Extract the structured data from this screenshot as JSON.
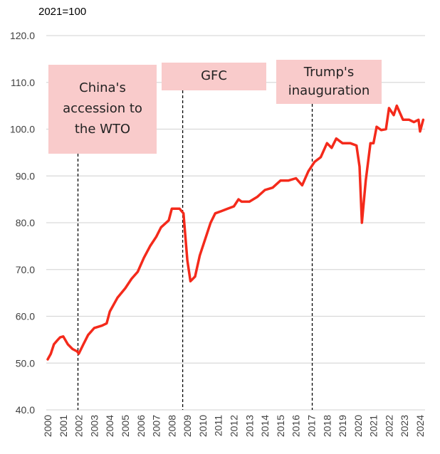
{
  "chart_data": {
    "type": "line",
    "unit_label": "2021=100",
    "ylim": [
      40,
      120
    ],
    "yticks": [
      "40.0",
      "50.0",
      "60.0",
      "70.0",
      "80.0",
      "90.0",
      "100.0",
      "110.0",
      "120.0"
    ],
    "xlim": [
      2000,
      2024
    ],
    "xticks": [
      "2000",
      "2001",
      "2002",
      "2003",
      "2004",
      "2005",
      "2006",
      "2007",
      "2008",
      "2009",
      "2010",
      "2011",
      "2012",
      "2013",
      "2014",
      "2015",
      "2016",
      "2017",
      "2018",
      "2019",
      "2020",
      "2021",
      "2022",
      "2023",
      "2024"
    ],
    "grid": true,
    "line_color": "#f42a1b",
    "series": [
      {
        "x": [
          2000.0,
          2000.2,
          2000.4,
          2000.6,
          2000.8,
          2001.0,
          2001.3,
          2001.6,
          2001.9,
          2002.0,
          2002.3,
          2002.6,
          2003.0,
          2003.5,
          2003.8,
          2004.0,
          2004.5,
          2005.0,
          2005.4,
          2005.8,
          2006.2,
          2006.6,
          2007.0,
          2007.3,
          2007.8,
          2008.0,
          2008.5,
          2008.75,
          2009.0,
          2009.2,
          2009.5,
          2009.8,
          2010.2,
          2010.5,
          2010.8,
          2011.2,
          2011.6,
          2012.0,
          2012.3,
          2012.5,
          2013.0,
          2013.5,
          2014.0,
          2014.5,
          2015.0,
          2015.5,
          2016.0,
          2016.4,
          2016.8,
          2017.2,
          2017.6,
          2018.0,
          2018.3,
          2018.6,
          2019.0,
          2019.5,
          2019.9,
          2020.1,
          2020.25,
          2020.5,
          2020.8,
          2021.0,
          2021.2,
          2021.5,
          2021.8,
          2022.0,
          2022.3,
          2022.5,
          2022.9,
          2023.3,
          2023.6,
          2023.9,
          2024.0,
          2024.2
        ],
        "y": [
          50.8,
          52,
          54,
          54.8,
          55.5,
          55.7,
          54,
          53,
          52.5,
          52,
          54,
          56,
          57.5,
          58,
          58.5,
          61,
          64,
          66,
          68,
          69.5,
          72.5,
          75,
          77,
          79,
          80.5,
          83,
          83,
          82,
          72,
          67.5,
          68.5,
          73,
          77,
          80,
          82,
          82.5,
          83,
          83.5,
          85,
          84.5,
          84.5,
          85.5,
          87,
          87.5,
          89,
          89,
          89.5,
          88,
          91,
          93,
          94,
          97,
          96,
          98,
          97,
          97,
          96.5,
          92,
          80,
          89,
          97,
          97,
          100.5,
          99.8,
          100,
          104.5,
          103,
          105,
          102,
          102,
          101.5,
          102,
          99.5,
          102
        ]
      }
    ],
    "annotations": [
      {
        "x": 2001.95,
        "label_lines": [
          "China's",
          "accession to",
          "the WTO"
        ]
      },
      {
        "x": 2008.7,
        "label_lines": [
          "GFC"
        ]
      },
      {
        "x": 2017.05,
        "label_lines": [
          "Trump's",
          "inauguration"
        ]
      }
    ]
  }
}
